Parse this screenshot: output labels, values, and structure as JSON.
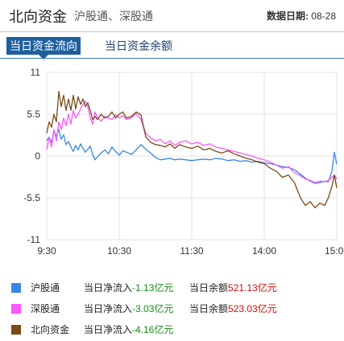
{
  "header": {
    "title": "北向资金",
    "subtitle": "沪股通、深股通",
    "date_label": "数据日期:",
    "date_value": "08-28"
  },
  "tabs": [
    {
      "label": "当日资金流向",
      "active": true
    },
    {
      "label": "当日资金余额",
      "active": false
    }
  ],
  "colors": {
    "hgt": "#3a86e6",
    "sgt": "#ff55ff",
    "north": "#7a4a1a",
    "tab_active": "#1f5f9e"
  },
  "legend": [
    {
      "name": "沪股通",
      "flow_label": "当日净流入",
      "flow_value": "-1.13",
      "flow_unit": "亿元",
      "balance_label": "当日余额",
      "balance_value": "521.13",
      "balance_unit": "亿元",
      "color_key": "hgt"
    },
    {
      "name": "深股通",
      "flow_label": "当日净流入",
      "flow_value": "-3.03",
      "flow_unit": "亿元",
      "balance_label": "当日余额",
      "balance_value": "523.03",
      "balance_unit": "亿元",
      "color_key": "sgt"
    },
    {
      "name": "北向资金",
      "flow_label": "当日净流入",
      "flow_value": "-4.16",
      "flow_unit": "亿元",
      "balance_label": "",
      "balance_value": "",
      "balance_unit": "",
      "color_key": "north"
    }
  ],
  "chart_data": {
    "type": "line",
    "x_ticks": [
      "9:30",
      "10:30",
      "11:30",
      "14:00",
      "15:00"
    ],
    "y_ticks": [
      11,
      5.5,
      0,
      -5.5,
      -11
    ],
    "ylim": [
      -11,
      11
    ],
    "x_unit": "minutes_of_session",
    "xlim": [
      0,
      240
    ],
    "grid": true,
    "series": [
      {
        "name": "沪股通",
        "color_key": "hgt",
        "x": [
          0,
          2,
          4,
          6,
          8,
          10,
          12,
          14,
          16,
          18,
          20,
          22,
          24,
          26,
          28,
          30,
          32,
          34,
          36,
          38,
          40,
          42,
          45,
          48,
          51,
          54,
          57,
          60,
          63,
          66,
          70,
          74,
          78,
          82,
          86,
          90,
          94,
          98,
          102,
          106,
          110,
          115,
          120,
          125,
          130,
          135,
          140,
          145,
          150,
          155,
          160,
          165,
          170,
          175,
          180,
          185,
          190,
          195,
          200,
          205,
          210,
          214,
          218,
          222,
          226,
          230,
          233,
          236,
          238,
          240
        ],
        "y": [
          2.0,
          2.5,
          1.8,
          3.2,
          2.6,
          3.5,
          2.2,
          2.8,
          1.5,
          1.9,
          1.2,
          0.6,
          1.4,
          0.8,
          1.6,
          1.0,
          0.5,
          0.9,
          1.3,
          0.2,
          -0.5,
          -0.1,
          0.4,
          0.8,
          0.3,
          1.2,
          0.6,
          0.1,
          0.7,
          0.5,
          0.2,
          0.8,
          1.5,
          0.9,
          0.4,
          -0.2,
          -0.5,
          -0.4,
          -0.3,
          -0.5,
          -0.4,
          -0.5,
          -0.6,
          -0.5,
          -0.4,
          -0.5,
          -0.3,
          -0.4,
          -0.6,
          -0.5,
          -0.7,
          -0.6,
          -0.8,
          -0.7,
          -0.9,
          -1.0,
          -1.2,
          -1.4,
          -1.5,
          -1.8,
          -2.4,
          -2.9,
          -3.3,
          -3.6,
          -3.5,
          -3.3,
          -3.4,
          -2.0,
          0.5,
          -1.1
        ]
      },
      {
        "name": "深股通",
        "color_key": "sgt",
        "x": [
          0,
          2,
          4,
          6,
          8,
          10,
          12,
          14,
          16,
          18,
          20,
          22,
          24,
          26,
          28,
          30,
          32,
          34,
          36,
          38,
          40,
          42,
          45,
          48,
          51,
          54,
          57,
          60,
          63,
          66,
          70,
          74,
          78,
          82,
          86,
          90,
          94,
          98,
          102,
          106,
          110,
          115,
          120,
          125,
          130,
          135,
          140,
          145,
          150,
          155,
          160,
          165,
          170,
          175,
          180,
          185,
          190,
          195,
          200,
          205,
          210,
          214,
          218,
          222,
          226,
          230,
          233,
          236,
          238,
          240
        ],
        "y": [
          0.8,
          2.5,
          1.2,
          3.5,
          2.0,
          4.5,
          3.5,
          5.0,
          4.0,
          5.5,
          4.2,
          6.0,
          5.0,
          5.5,
          6.2,
          6.8,
          7.2,
          6.5,
          5.0,
          4.2,
          5.8,
          5.0,
          4.6,
          5.2,
          5.0,
          4.8,
          5.4,
          5.0,
          5.3,
          4.8,
          5.0,
          5.6,
          4.8,
          3.0,
          2.4,
          2.0,
          2.2,
          1.6,
          2.0,
          1.4,
          1.8,
          2.0,
          1.6,
          1.8,
          1.4,
          1.6,
          1.2,
          1.0,
          0.8,
          0.6,
          0.4,
          0.2,
          0.0,
          -0.3,
          -0.5,
          -0.8,
          -1.2,
          -1.6,
          -1.4,
          -2.2,
          -2.6,
          -3.0,
          -3.2,
          -3.5,
          -3.3,
          -3.4,
          -3.2,
          -2.8,
          -2.5,
          -3.0
        ]
      },
      {
        "name": "北向资金",
        "color_key": "north",
        "x": [
          0,
          2,
          4,
          6,
          8,
          10,
          12,
          14,
          16,
          18,
          20,
          22,
          24,
          26,
          28,
          30,
          32,
          34,
          36,
          38,
          40,
          42,
          45,
          48,
          51,
          54,
          57,
          60,
          63,
          66,
          70,
          74,
          78,
          82,
          86,
          90,
          94,
          98,
          102,
          106,
          110,
          115,
          120,
          125,
          130,
          135,
          140,
          145,
          150,
          155,
          160,
          165,
          170,
          175,
          180,
          185,
          190,
          195,
          200,
          205,
          210,
          214,
          218,
          222,
          226,
          230,
          233,
          236,
          238,
          240
        ],
        "y": [
          3.0,
          4.5,
          3.8,
          5.5,
          4.5,
          8.5,
          6.5,
          8.0,
          6.0,
          7.5,
          6.0,
          8.0,
          6.2,
          7.8,
          6.8,
          7.5,
          6.5,
          7.0,
          6.0,
          4.8,
          5.2,
          4.8,
          5.5,
          5.0,
          5.2,
          5.8,
          5.0,
          5.5,
          5.8,
          5.0,
          5.2,
          5.8,
          5.4,
          2.5,
          1.8,
          1.5,
          1.4,
          1.2,
          1.6,
          1.0,
          1.5,
          1.2,
          1.0,
          1.3,
          0.8,
          1.0,
          0.6,
          0.4,
          0.7,
          0.3,
          0.0,
          -0.3,
          -0.5,
          -0.8,
          -1.0,
          -1.6,
          -2.0,
          -2.8,
          -2.5,
          -3.5,
          -5.5,
          -6.5,
          -6.0,
          -6.8,
          -6.2,
          -6.5,
          -5.5,
          -4.0,
          -2.5,
          -4.2
        ]
      }
    ]
  }
}
